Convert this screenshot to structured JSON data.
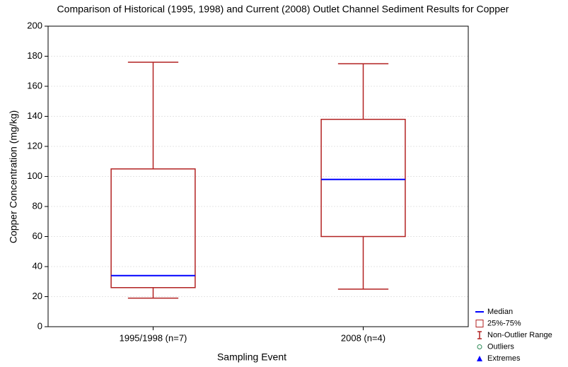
{
  "chart_data": {
    "type": "box",
    "title": "Comparison of Historical (1995, 1998) and Current (2008) Outlet Channel Sediment Results for Copper",
    "xlabel": "Sampling Event",
    "ylabel": "Copper Concentration (mg/kg)",
    "categories": [
      "1995/1998 (n=7)",
      "2008 (n=4)"
    ],
    "min": [
      19,
      25
    ],
    "q1": [
      26,
      60
    ],
    "median": [
      34,
      98
    ],
    "q3": [
      105,
      138
    ],
    "max": [
      176,
      175
    ],
    "box_color": "#b22222",
    "median_color": "#0000ff",
    "ylim": [
      0,
      200
    ],
    "yticks": [
      0,
      20,
      40,
      60,
      80,
      100,
      120,
      140,
      160,
      180,
      200
    ],
    "grid": true,
    "legend_position": "lower right",
    "legend": [
      {
        "name": "Median",
        "color": "#0000ff"
      },
      {
        "name": "25%-75%",
        "color": "#b22222"
      },
      {
        "name": "Non-Outlier Range",
        "color": "#b22222"
      },
      {
        "name": "Outliers",
        "color": "#2e8b57"
      },
      {
        "name": "Extremes",
        "color": "#0000ff"
      }
    ]
  }
}
